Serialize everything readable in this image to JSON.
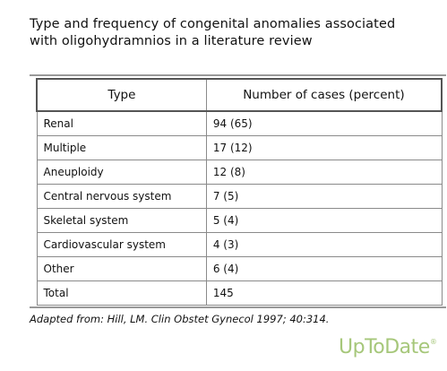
{
  "title": "Type and frequency of congenital anomalies associated with oligohydramnios in a literature review",
  "table": {
    "headers": [
      "Type",
      "Number of cases (percent)"
    ],
    "rows": [
      {
        "type": "Renal",
        "cases": "94 (65)"
      },
      {
        "type": "Multiple",
        "cases": "17 (12)"
      },
      {
        "type": "Aneuploidy",
        "cases": "12 (8)"
      },
      {
        "type": "Central nervous system",
        "cases": "7 (5)"
      },
      {
        "type": "Skeletal system",
        "cases": "5 (4)"
      },
      {
        "type": "Cardiovascular system",
        "cases": "4 (3)"
      },
      {
        "type": "Other",
        "cases": "6 (4)"
      },
      {
        "type": "Total",
        "cases": "145"
      }
    ]
  },
  "source": "Adapted from: Hill, LM. Clin Obstet Gynecol 1997; 40:314.",
  "logo": {
    "text": "UpToDate",
    "mark": "®"
  },
  "colors": {
    "logo": "#a6c77a",
    "rule": "#999999",
    "border": "#8a8a8a"
  }
}
